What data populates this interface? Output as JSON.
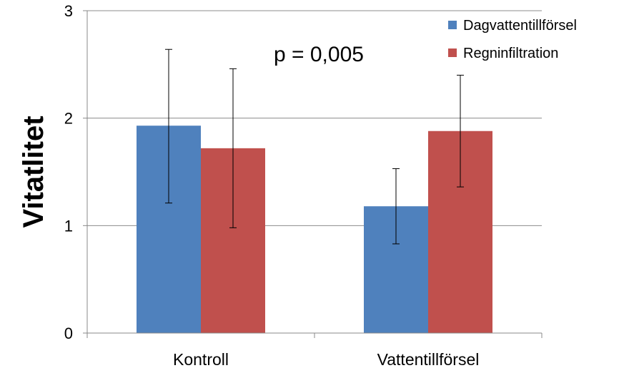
{
  "chart_data": {
    "type": "bar",
    "title": "",
    "xlabel": "",
    "ylabel": "Vitatlitet",
    "ylim": [
      0,
      3
    ],
    "yticks": [
      0,
      1,
      2,
      3
    ],
    "grid": true,
    "legend_position": "top-right",
    "categories": [
      "Kontroll",
      "Vattentillförsel"
    ],
    "series": [
      {
        "name": "Dagvattentillförsel",
        "color": "#4F81BD",
        "values": [
          1.93,
          1.18
        ],
        "error_low": [
          1.21,
          0.83
        ],
        "error_high": [
          2.64,
          1.53
        ]
      },
      {
        "name": "Regninfiltration",
        "color": "#C0504D",
        "values": [
          1.72,
          1.88
        ],
        "error_low": [
          0.98,
          1.36
        ],
        "error_high": [
          2.46,
          2.4
        ]
      }
    ],
    "annotations": [
      {
        "text": "p = 0,005"
      }
    ]
  }
}
